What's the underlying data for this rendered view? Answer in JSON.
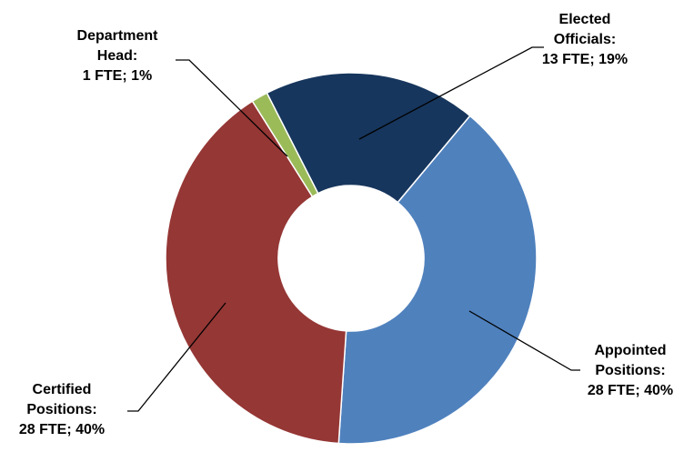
{
  "chart_data": {
    "type": "pie",
    "style": "donut",
    "slices": [
      {
        "label_lines": [
          "Elected",
          "Officials:",
          "13 FTE; 19%"
        ],
        "fte": 13,
        "percent": 19,
        "color": "#17365d"
      },
      {
        "label_lines": [
          "Appointed",
          "Positions:",
          "28 FTE; 40%"
        ],
        "fte": 28,
        "percent": 40,
        "color": "#4f81bd"
      },
      {
        "label_lines": [
          "Certified",
          "Positions:",
          "28 FTE; 40%"
        ],
        "fte": 28,
        "percent": 40,
        "color": "#953735"
      },
      {
        "label_lines": [
          "Department",
          "Head:",
          "1 FTE; 1%"
        ],
        "fte": 1,
        "percent": 1,
        "color": "#9bbb59"
      }
    ]
  }
}
